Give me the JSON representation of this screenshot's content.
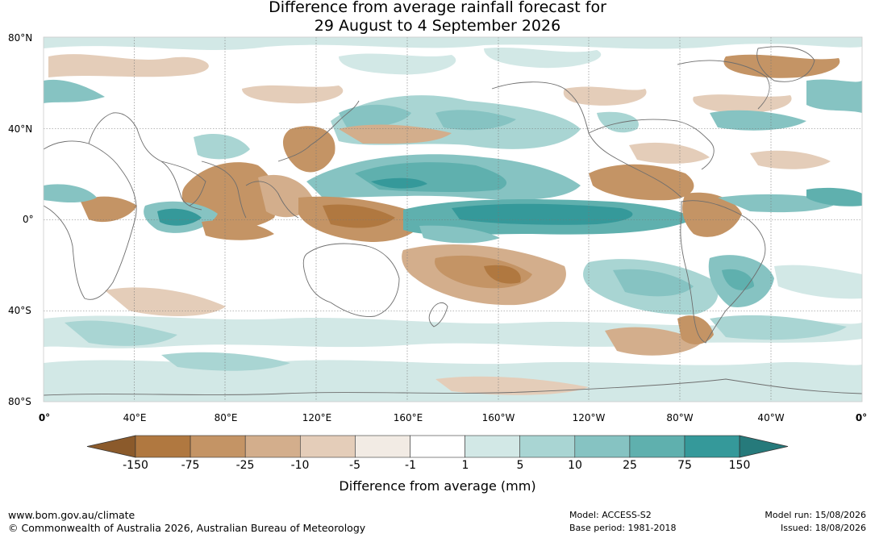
{
  "title": {
    "line1": "Difference from average rainfall forecast for",
    "line2": "29 August to 4 September 2026"
  },
  "axes": {
    "lat_labels": [
      "80°N",
      "40°N",
      "0°",
      "40°S",
      "80°S"
    ],
    "lat_values": [
      80,
      40,
      0,
      -40,
      -80
    ],
    "lon_labels": [
      "0°",
      "40°E",
      "80°E",
      "120°E",
      "160°E",
      "160°W",
      "120°W",
      "80°W",
      "40°W",
      "0°"
    ],
    "lon_values": [
      0,
      40,
      80,
      120,
      160,
      200,
      240,
      280,
      320,
      360
    ]
  },
  "legend": {
    "title": "Difference from average (mm)",
    "ticks": [
      "-150",
      "-75",
      "-25",
      "-10",
      "-5",
      "-1",
      "1",
      "5",
      "10",
      "25",
      "75",
      "150"
    ],
    "colors": [
      "#8b5a2b",
      "#b07840",
      "#c49465",
      "#d3ae8c",
      "#e4cdb9",
      "#f2ebe4",
      "#ffffff",
      "#d2e8e6",
      "#a9d5d3",
      "#86c3c2",
      "#5fb0ae",
      "#35999a",
      "#267a7b"
    ]
  },
  "footer": {
    "url": "www.bom.gov.au/climate",
    "copyright": "© Commonwealth of Australia 2026, Australian Bureau of Meteorology",
    "model": "Model: ACCESS-S2",
    "base_period": "Base period: 1981-2018",
    "model_run": "Model run: 15/08/2026",
    "issued": "Issued: 18/08/2026"
  }
}
